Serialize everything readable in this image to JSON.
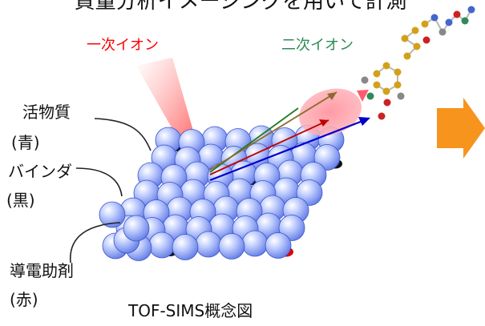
{
  "top_text": "質量分析イメージングを用いて計測",
  "primary_ion": {
    "label": "一次イオン",
    "color": "#ff0000"
  },
  "secondary_ion": {
    "label": "二次イオン",
    "color": "#2e8b57"
  },
  "components": [
    {
      "name": "活物質",
      "paren": "(青)",
      "color": "#7f95e8"
    },
    {
      "name": "バインダ",
      "paren": "(黒)",
      "color": "#111111"
    },
    {
      "name": "導電助剤",
      "paren": "(赤)",
      "color": "#e00000"
    }
  ],
  "caption": "TOF-SIMS概念図",
  "arrow_color": "#f7941d"
}
